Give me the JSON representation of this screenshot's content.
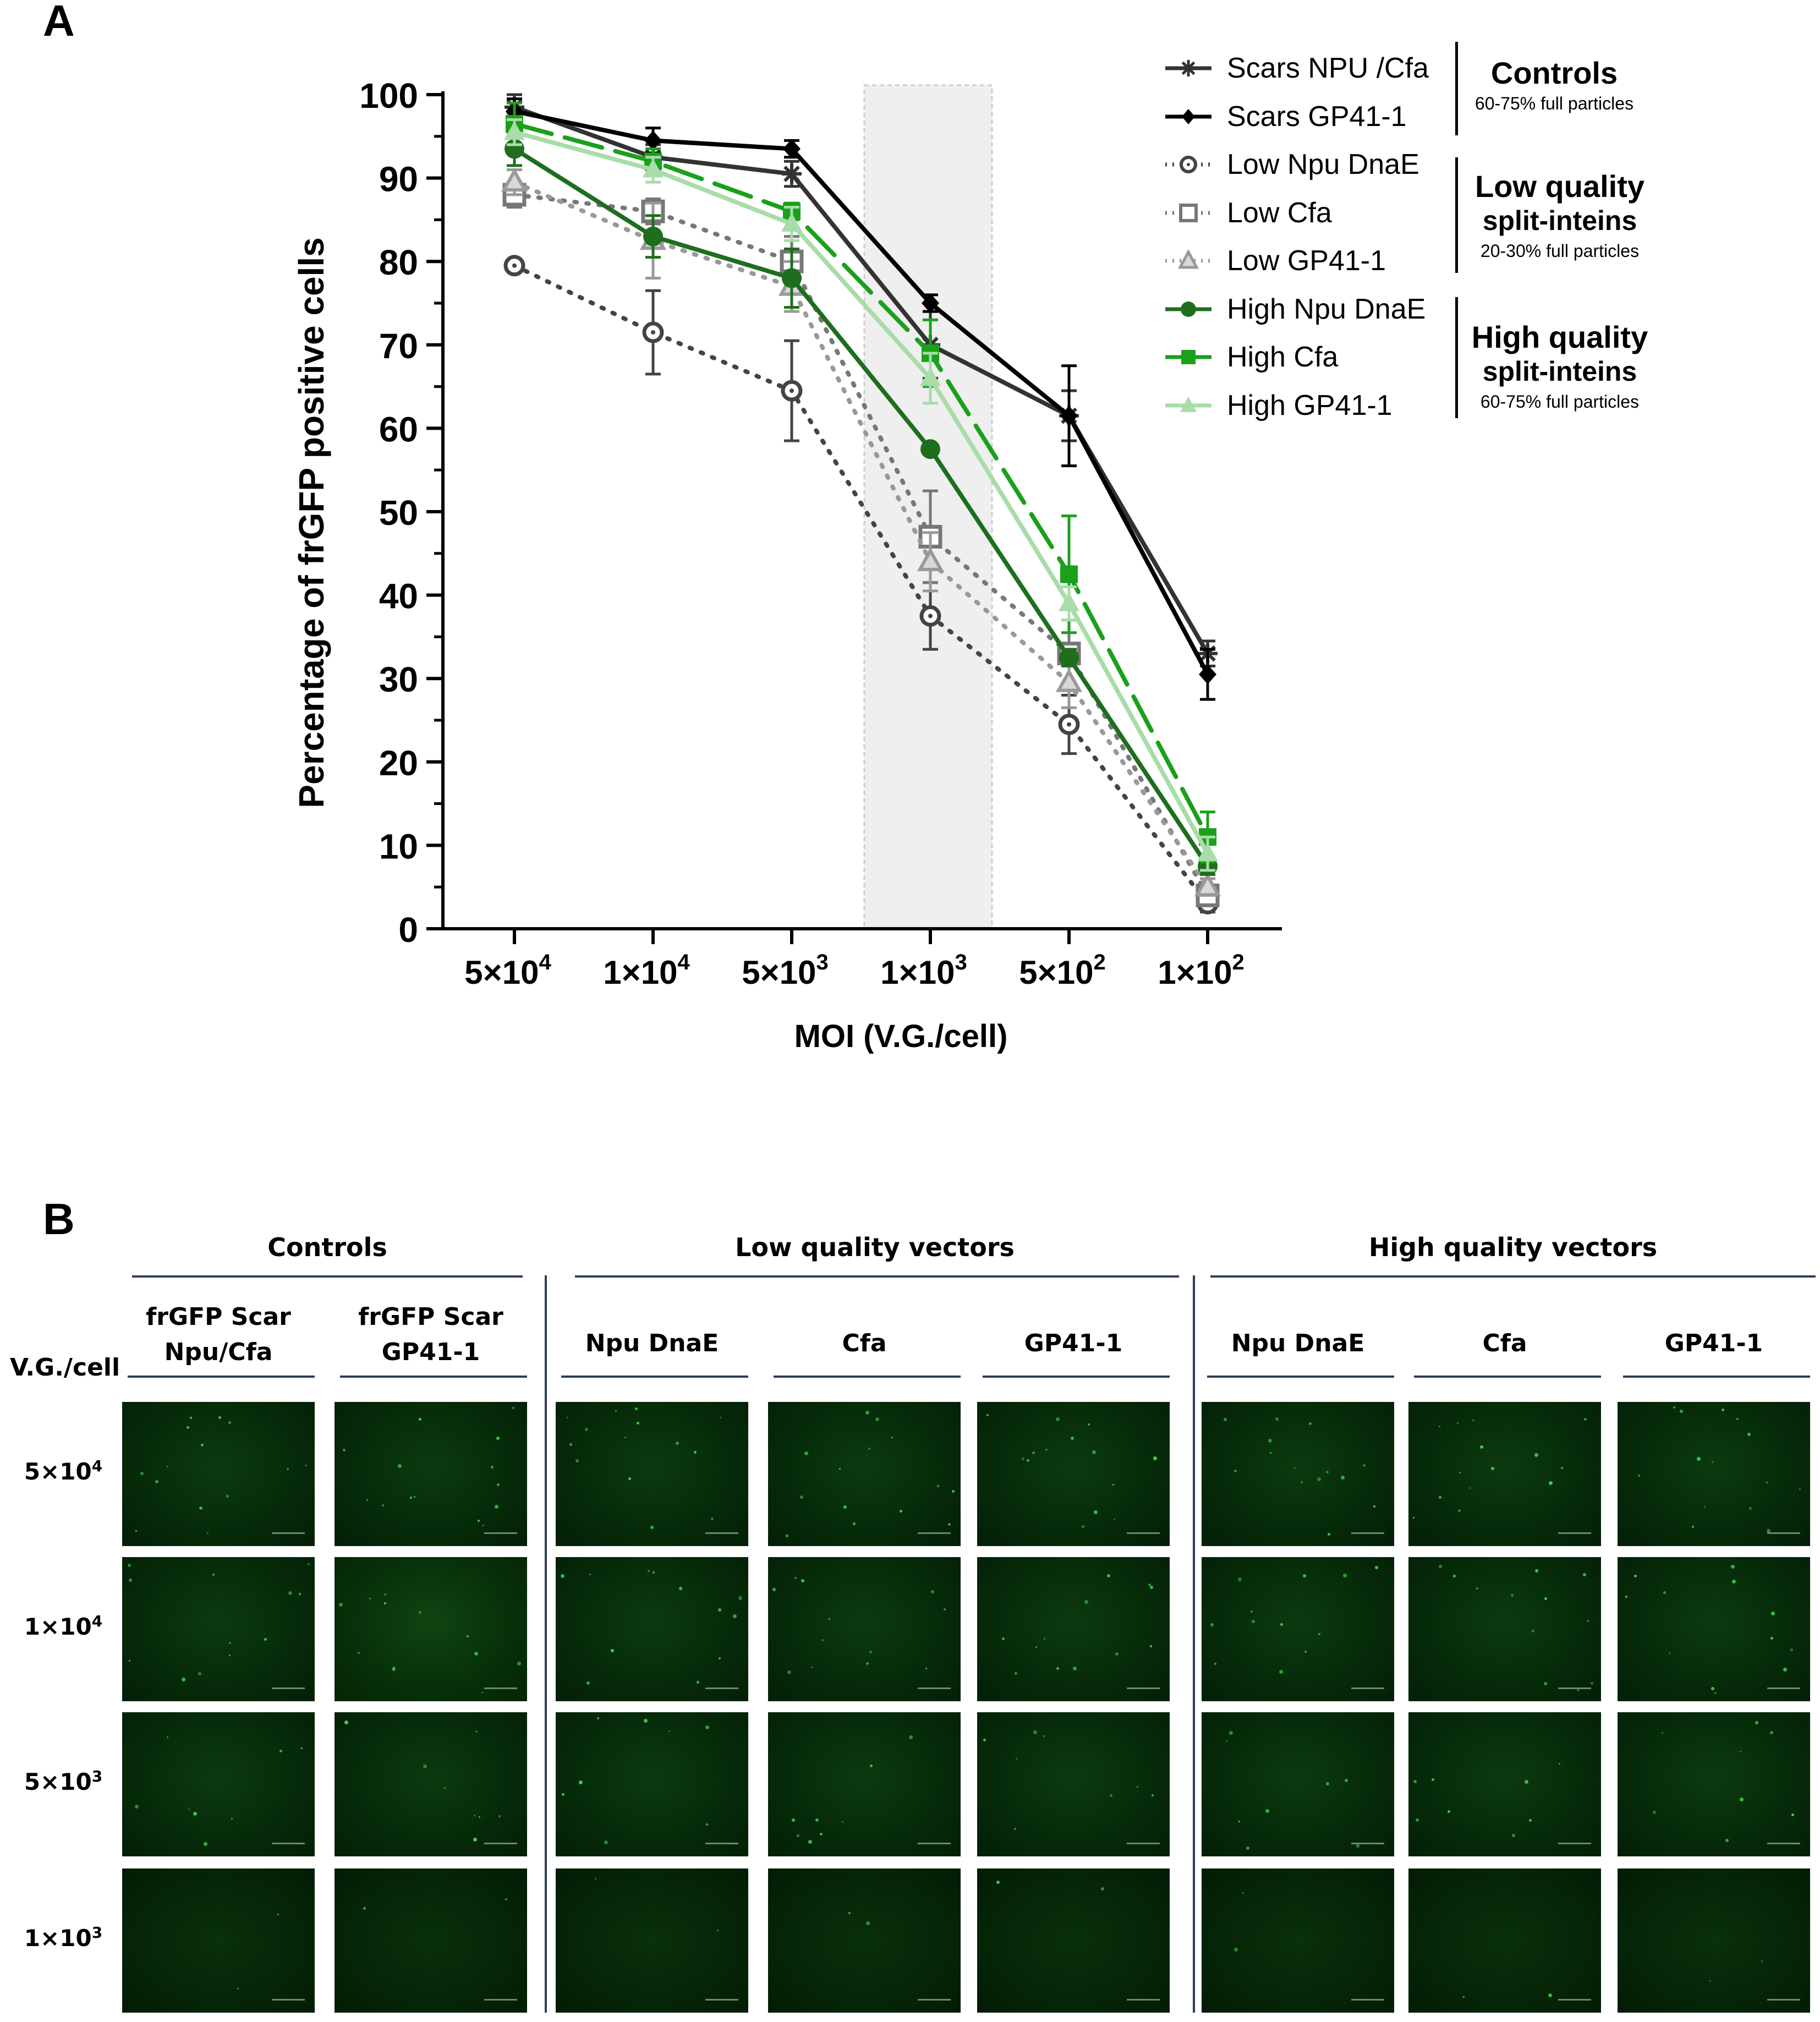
{
  "panel_a_label": "A",
  "panel_b_label": "B",
  "chart_data": {
    "type": "line",
    "title": "",
    "xlabel": "MOI (V.G./cell)",
    "ylabel": "Percentage of frGFP positive cells",
    "categories": [
      "5×10^4",
      "1×10^4",
      "5×10^3",
      "1×10^3",
      "5×10^2",
      "1×10^2"
    ],
    "category_display": [
      {
        "base": "5×10",
        "exp": "4"
      },
      {
        "base": "1×10",
        "exp": "4"
      },
      {
        "base": "5×10",
        "exp": "3"
      },
      {
        "base": "1×10",
        "exp": "3"
      },
      {
        "base": "5×10",
        "exp": "2"
      },
      {
        "base": "1×10",
        "exp": "2"
      }
    ],
    "ylim": [
      0,
      100
    ],
    "yticks": [
      0,
      10,
      20,
      30,
      40,
      50,
      60,
      70,
      80,
      90,
      100
    ],
    "highlight_category": "1×10^3",
    "series": [
      {
        "name": "Scars NPU /Cfa",
        "color": "#333333",
        "marker": "star",
        "dash": "solid",
        "values": [
          98.5,
          92.5,
          90.5,
          70,
          61.5,
          33
        ],
        "errors": [
          1.5,
          1.5,
          1.5,
          4,
          3,
          1.5
        ]
      },
      {
        "name": "Scars GP41-1",
        "color": "#000000",
        "marker": "diamond",
        "dash": "solid",
        "values": [
          98,
          94.5,
          93.5,
          75,
          61.5,
          30.5
        ],
        "errors": [
          1.5,
          1.5,
          1,
          1,
          6,
          3
        ]
      },
      {
        "name": "Low Npu DnaE",
        "color": "#444444",
        "marker": "dot-circle",
        "dash": "dotted",
        "values": [
          79.5,
          71.5,
          64.5,
          37.5,
          24.5,
          3
        ],
        "errors": [
          0,
          5,
          6,
          4,
          3.5,
          1
        ]
      },
      {
        "name": "Low Cfa",
        "color": "#777777",
        "marker": "square-open",
        "dash": "dotted",
        "values": [
          88,
          86,
          80,
          47,
          33,
          4
        ],
        "errors": [
          1.5,
          1.5,
          3,
          5.5,
          4,
          1
        ]
      },
      {
        "name": "Low GP41-1",
        "color": "#999999",
        "marker": "triangle",
        "dash": "dotted",
        "values": [
          89.5,
          82.5,
          77,
          44,
          29.5,
          5
        ],
        "errors": [
          1.5,
          4.5,
          3,
          3.5,
          3,
          1
        ]
      },
      {
        "name": "High Npu DnaE",
        "color": "#1e6e1e",
        "marker": "circle",
        "dash": "solid",
        "values": [
          93.5,
          83,
          78,
          57.5,
          32.5,
          7.5
        ],
        "errors": [
          2,
          2.5,
          3.5,
          0.5,
          1,
          1
        ]
      },
      {
        "name": "High Cfa",
        "color": "#1aa01a",
        "marker": "square",
        "dash": "dashed",
        "values": [
          96.5,
          92,
          86,
          69,
          42.5,
          11
        ],
        "errors": [
          2.5,
          1.5,
          1,
          4,
          7,
          3
        ]
      },
      {
        "name": "High GP41-1",
        "color": "#a8dca8",
        "marker": "triangle-filled",
        "dash": "solid",
        "values": [
          95.5,
          91,
          84.5,
          66,
          39,
          9
        ],
        "errors": [
          1.5,
          1.5,
          2,
          3,
          2,
          2
        ]
      }
    ]
  },
  "legend_groups": [
    {
      "title": "Controls",
      "title2": "",
      "subtitle": "60-75% full particles"
    },
    {
      "title": "Low quality",
      "title2": "split-inteins",
      "subtitle": "20-30% full particles"
    },
    {
      "title": "High quality",
      "title2": "split-inteins",
      "subtitle": "60-75% full particles"
    }
  ],
  "micrographs": {
    "group_headers": [
      "Controls",
      "Low quality vectors",
      "High quality vectors"
    ],
    "column_headers": [
      {
        "line1": "frGFP Scar",
        "line2": "Npu/Cfa"
      },
      {
        "line1": "frGFP Scar",
        "line2": "GP41-1"
      },
      {
        "line1": "Npu DnaE",
        "line2": ""
      },
      {
        "line1": "Cfa",
        "line2": ""
      },
      {
        "line1": "GP41-1",
        "line2": ""
      },
      {
        "line1": "Npu DnaE",
        "line2": ""
      },
      {
        "line1": "Cfa",
        "line2": ""
      },
      {
        "line1": "GP41-1",
        "line2": ""
      }
    ],
    "row_axis_label": "V.G./cell",
    "rows": [
      {
        "base": "5×10",
        "exp": "4"
      },
      {
        "base": "1×10",
        "exp": "4"
      },
      {
        "base": "5×10",
        "exp": "3"
      },
      {
        "base": "1×10",
        "exp": "3"
      }
    ]
  }
}
